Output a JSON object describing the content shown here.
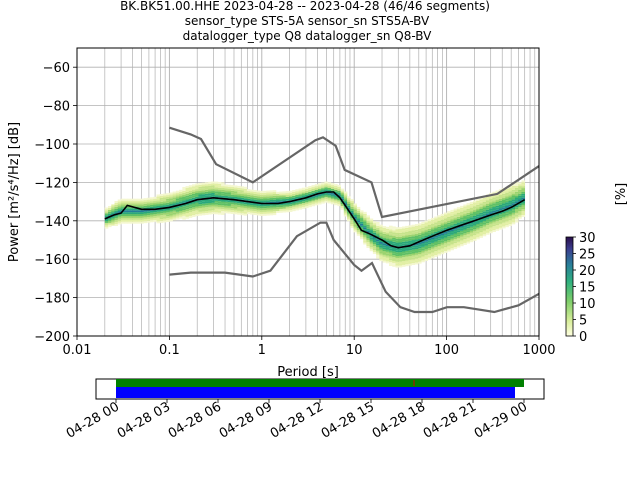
{
  "title_lines": [
    "BK.BK51.00.HHE   2023-04-28 -- 2023-04-28  (46/46 segments)",
    "sensor_type STS-5A sensor_sn STS5A-BV",
    "datalogger_type Q8 datalogger_sn Q8-BV"
  ],
  "colors": {
    "median": "#000000",
    "noise_model": "#666666",
    "coverage_data": "#0000ff",
    "coverage_gaps_bar": "#008000",
    "grid": "#b0b0b0"
  },
  "chart_data": {
    "type": "heatmap",
    "title": "BK.BK51.00.HHE   2023-04-28 -- 2023-04-28  (46/46 segments)",
    "xlabel": "Period [s]",
    "ylabel": "Power [m²/s⁴/Hz] [dB]",
    "xscale": "log",
    "xlim": [
      0.01,
      1000
    ],
    "ylim": [
      -200,
      -50
    ],
    "xticks": [
      0.01,
      0.1,
      1,
      10,
      100,
      1000
    ],
    "xtick_labels": [
      "0.01",
      "0.1",
      "1",
      "10",
      "100",
      "1000"
    ],
    "yticks": [
      -200,
      -180,
      -160,
      -140,
      -120,
      -100,
      -80,
      -60
    ],
    "ytick_labels": [
      "−200",
      "−180",
      "−160",
      "−140",
      "−120",
      "−100",
      "−80",
      "−60"
    ],
    "grid": true,
    "colorbar": {
      "label": "[%]",
      "range": [
        0,
        30
      ],
      "ticks": [
        0,
        5,
        10,
        15,
        20,
        25,
        30
      ],
      "tick_labels": [
        "0",
        "5",
        "10",
        "15",
        "20",
        "25",
        "30"
      ]
    },
    "median": {
      "x": [
        0.02,
        0.025,
        0.03,
        0.035,
        0.05,
        0.07,
        0.1,
        0.15,
        0.2,
        0.3,
        0.5,
        0.7,
        1,
        1.5,
        2,
        3,
        4,
        5,
        6,
        7,
        8,
        10,
        12,
        15,
        20,
        25,
        30,
        40,
        50,
        70,
        100,
        150,
        200,
        300,
        400,
        500,
        700
      ],
      "y": [
        -139,
        -137,
        -136,
        -132,
        -134,
        -134,
        -133,
        -131,
        -129,
        -128,
        -129,
        -130,
        -131,
        -131,
        -130,
        -128,
        -126,
        -125,
        -125,
        -128,
        -132,
        -139,
        -145,
        -147,
        -150,
        -153,
        -154,
        -153,
        -151,
        -148,
        -145,
        -142,
        -140,
        -137,
        -135,
        -133,
        -129
      ]
    },
    "noise_models": [
      {
        "x": [
          0.1,
          0.17,
          0.22,
          0.32,
          0.8,
          3.8,
          4.6,
          6.3,
          7.9,
          15.4,
          20,
          354,
          1000
        ],
        "y": [
          -91.5,
          -95,
          -97.4,
          -110.5,
          -120,
          -98,
          -96.5,
          -101,
          -113.5,
          -120,
          -138,
          -126,
          -111.5
        ]
      },
      {
        "x": [
          0.1,
          0.17,
          0.4,
          0.8,
          1.24,
          2.4,
          4.3,
          5,
          6,
          10,
          12,
          15.6,
          21.9,
          31.6,
          45,
          70,
          101,
          154,
          328,
          600,
          1000
        ],
        "y": [
          -168,
          -167,
          -167,
          -169,
          -166,
          -148,
          -141,
          -141,
          -150,
          -163,
          -166,
          -162,
          -177,
          -185,
          -187.5,
          -187.5,
          -185,
          -185,
          -187.5,
          -184,
          -178
        ]
      }
    ],
    "histogram_bands": [
      {
        "x": [
          0.02,
          0.03,
          0.05,
          0.1,
          0.2,
          0.3,
          0.5,
          1,
          2,
          3,
          5,
          7,
          10,
          15,
          20,
          30,
          50,
          100,
          200,
          300,
          500,
          700
        ],
        "center": [
          -139,
          -135,
          -135,
          -133,
          -129,
          -128,
          -129,
          -131,
          -130,
          -128,
          -125,
          -127,
          -138,
          -147,
          -152,
          -154,
          -152,
          -146,
          -140,
          -136,
          -132,
          -128
        ],
        "spread": [
          5,
          6,
          6,
          7,
          8,
          8,
          7,
          6,
          5,
          5,
          5,
          5,
          7,
          8,
          9,
          10,
          10,
          10,
          10,
          10,
          10,
          9
        ]
      }
    ],
    "coverage": {
      "xlim": [
        "04-28 00",
        "04-29 00"
      ],
      "xtick_labels": [
        "04-28 00",
        "04-28 03",
        "04-28 06",
        "04-28 09",
        "04-28 12",
        "04-28 15",
        "04-28 18",
        "04-28 21",
        "04-29 00"
      ],
      "gap_marker_time": "04-28 17.7"
    }
  }
}
